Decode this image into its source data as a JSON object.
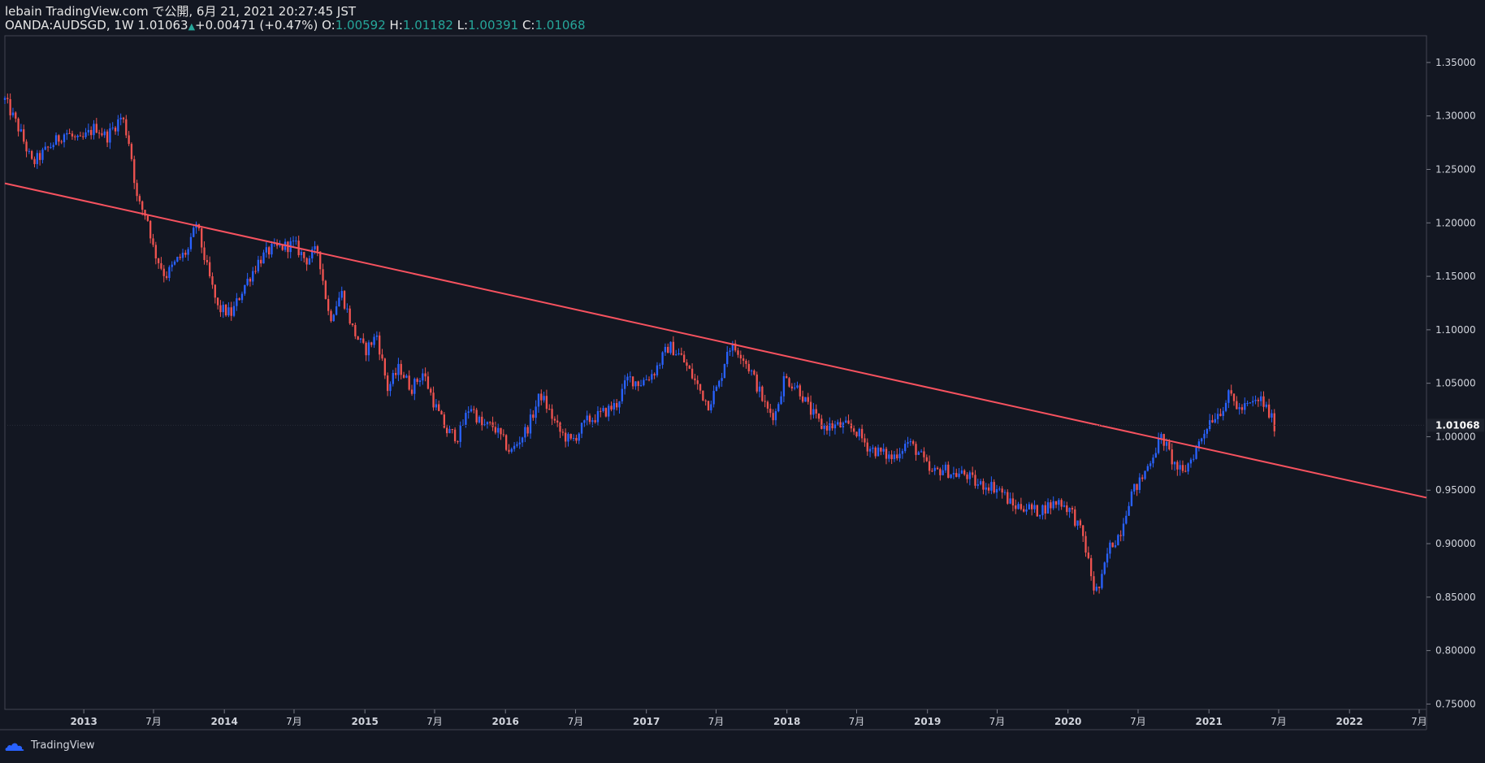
{
  "header": {
    "published": "lebain TradingView.com で公開, 6月 21, 2021 20:27:45 JST",
    "symbol": "OANDA:AUDSGD, 1W",
    "last": "1.01063",
    "change": "+0.00471 (+0.47%)",
    "o_label": "O:",
    "o_value": "1.00592",
    "h_label": "H:",
    "h_value": "1.01182",
    "l_label": "L:",
    "l_value": "1.00391",
    "c_label": "C:",
    "c_value": "1.01068"
  },
  "footer": {
    "brand": "TradingView"
  },
  "colors": {
    "up": "#2962ff",
    "down": "#ef5350",
    "bg": "#131722",
    "trend": "#f7525f",
    "text": "#d1d4dc",
    "accent": "#26a69a"
  },
  "chart_data": {
    "type": "candlestick",
    "symbol": "OANDA:AUDSGD",
    "interval": "1W",
    "y_axis": {
      "range": [
        0.745,
        1.375
      ],
      "ticks": [
        "1.35000",
        "1.30000",
        "1.25000",
        "1.20000",
        "1.15000",
        "1.10000",
        "1.05000",
        "1.00000",
        "0.95000",
        "0.90000",
        "0.85000",
        "0.80000",
        "0.75000"
      ],
      "last_price_label": "1.01068"
    },
    "x_axis": {
      "range": [
        "2012-06-10",
        "2022-07-20"
      ],
      "ticks": [
        {
          "date": "2013-01-01",
          "label": "2013",
          "bold": true
        },
        {
          "date": "2013-07-01",
          "label": "7月",
          "bold": false
        },
        {
          "date": "2014-01-01",
          "label": "2014",
          "bold": true
        },
        {
          "date": "2014-07-01",
          "label": "7月",
          "bold": false
        },
        {
          "date": "2015-01-01",
          "label": "2015",
          "bold": true
        },
        {
          "date": "2015-07-01",
          "label": "7月",
          "bold": false
        },
        {
          "date": "2016-01-01",
          "label": "2016",
          "bold": true
        },
        {
          "date": "2016-07-01",
          "label": "7月",
          "bold": false
        },
        {
          "date": "2017-01-01",
          "label": "2017",
          "bold": true
        },
        {
          "date": "2017-07-01",
          "label": "7月",
          "bold": false
        },
        {
          "date": "2018-01-01",
          "label": "2018",
          "bold": true
        },
        {
          "date": "2018-07-01",
          "label": "7月",
          "bold": false
        },
        {
          "date": "2019-01-01",
          "label": "2019",
          "bold": true
        },
        {
          "date": "2019-07-01",
          "label": "7月",
          "bold": false
        },
        {
          "date": "2020-01-01",
          "label": "2020",
          "bold": true
        },
        {
          "date": "2020-07-01",
          "label": "7月",
          "bold": false
        },
        {
          "date": "2021-01-01",
          "label": "2021",
          "bold": true
        },
        {
          "date": "2021-07-01",
          "label": "7月",
          "bold": false
        },
        {
          "date": "2022-01-01",
          "label": "2022",
          "bold": true
        },
        {
          "date": "2022-07-01",
          "label": "7月",
          "bold": false
        }
      ]
    },
    "price_path": [
      [
        "2012-06-10",
        1.315
      ],
      [
        "2012-07-20",
        1.285
      ],
      [
        "2012-08-20",
        1.255
      ],
      [
        "2012-10-01",
        1.27
      ],
      [
        "2012-11-15",
        1.285
      ],
      [
        "2012-12-20",
        1.275
      ],
      [
        "2013-02-01",
        1.29
      ],
      [
        "2013-03-01",
        1.28
      ],
      [
        "2013-04-10",
        1.3
      ],
      [
        "2013-05-01",
        1.272
      ],
      [
        "2013-05-20",
        1.22
      ],
      [
        "2013-06-15",
        1.205
      ],
      [
        "2013-07-01",
        1.175
      ],
      [
        "2013-08-01",
        1.15
      ],
      [
        "2013-09-01",
        1.165
      ],
      [
        "2013-10-01",
        1.175
      ],
      [
        "2013-10-20",
        1.2
      ],
      [
        "2013-11-15",
        1.16
      ],
      [
        "2013-12-15",
        1.12
      ],
      [
        "2014-01-20",
        1.115
      ],
      [
        "2014-02-20",
        1.14
      ],
      [
        "2014-04-01",
        1.165
      ],
      [
        "2014-05-01",
        1.175
      ],
      [
        "2014-07-01",
        1.18
      ],
      [
        "2014-08-01",
        1.165
      ],
      [
        "2014-09-01",
        1.175
      ],
      [
        "2014-10-01",
        1.11
      ],
      [
        "2014-11-01",
        1.135
      ],
      [
        "2014-12-01",
        1.1
      ],
      [
        "2015-01-01",
        1.08
      ],
      [
        "2015-02-01",
        1.095
      ],
      [
        "2015-03-01",
        1.045
      ],
      [
        "2015-04-01",
        1.065
      ],
      [
        "2015-05-01",
        1.045
      ],
      [
        "2015-06-01",
        1.06
      ],
      [
        "2015-07-01",
        1.03
      ],
      [
        "2015-08-01",
        1.005
      ],
      [
        "2015-09-01",
        1.0
      ],
      [
        "2015-10-01",
        1.03
      ],
      [
        "2015-11-01",
        1.01
      ],
      [
        "2015-12-01",
        1.01
      ],
      [
        "2016-01-15",
        0.985
      ],
      [
        "2016-03-01",
        1.01
      ],
      [
        "2016-04-01",
        1.04
      ],
      [
        "2016-05-20",
        1.005
      ],
      [
        "2016-06-20",
        0.995
      ],
      [
        "2016-08-01",
        1.015
      ],
      [
        "2016-09-01",
        1.02
      ],
      [
        "2016-10-15",
        1.03
      ],
      [
        "2016-11-15",
        1.055
      ],
      [
        "2016-12-15",
        1.05
      ],
      [
        "2017-01-20",
        1.06
      ],
      [
        "2017-03-01",
        1.085
      ],
      [
        "2017-04-01",
        1.075
      ],
      [
        "2017-05-10",
        1.05
      ],
      [
        "2017-06-10",
        1.03
      ],
      [
        "2017-07-10",
        1.05
      ],
      [
        "2017-08-01",
        1.085
      ],
      [
        "2017-09-01",
        1.08
      ],
      [
        "2017-10-01",
        1.06
      ],
      [
        "2017-11-10",
        1.025
      ],
      [
        "2017-12-01",
        1.02
      ],
      [
        "2017-12-25",
        1.055
      ],
      [
        "2018-02-01",
        1.045
      ],
      [
        "2018-03-01",
        1.025
      ],
      [
        "2018-04-01",
        1.01
      ],
      [
        "2018-05-01",
        1.01
      ],
      [
        "2018-06-01",
        1.01
      ],
      [
        "2018-07-01",
        1.005
      ],
      [
        "2018-08-01",
        0.99
      ],
      [
        "2018-09-01",
        0.985
      ],
      [
        "2018-10-01",
        0.98
      ],
      [
        "2018-11-10",
        0.995
      ],
      [
        "2018-12-10",
        0.985
      ],
      [
        "2019-01-10",
        0.965
      ],
      [
        "2019-02-10",
        0.97
      ],
      [
        "2019-03-10",
        0.965
      ],
      [
        "2019-04-10",
        0.965
      ],
      [
        "2019-05-10",
        0.955
      ],
      [
        "2019-06-10",
        0.955
      ],
      [
        "2019-07-10",
        0.95
      ],
      [
        "2019-08-10",
        0.935
      ],
      [
        "2019-09-10",
        0.935
      ],
      [
        "2019-10-10",
        0.93
      ],
      [
        "2019-11-10",
        0.935
      ],
      [
        "2019-12-10",
        0.94
      ],
      [
        "2020-01-10",
        0.93
      ],
      [
        "2020-02-10",
        0.905
      ],
      [
        "2020-03-10",
        0.855
      ],
      [
        "2020-03-25",
        0.86
      ],
      [
        "2020-04-15",
        0.895
      ],
      [
        "2020-05-15",
        0.91
      ],
      [
        "2020-06-10",
        0.945
      ],
      [
        "2020-07-10",
        0.96
      ],
      [
        "2020-08-10",
        0.985
      ],
      [
        "2020-09-01",
        1.0
      ],
      [
        "2020-10-01",
        0.975
      ],
      [
        "2020-10-25",
        0.965
      ],
      [
        "2020-12-01",
        0.99
      ],
      [
        "2021-01-01",
        1.015
      ],
      [
        "2021-02-01",
        1.025
      ],
      [
        "2021-02-25",
        1.04
      ],
      [
        "2021-03-20",
        1.025
      ],
      [
        "2021-04-20",
        1.03
      ],
      [
        "2021-05-15",
        1.035
      ],
      [
        "2021-06-01",
        1.025
      ],
      [
        "2021-06-21",
        1.01
      ]
    ],
    "trendline": [
      [
        "2012-06-10",
        1.237
      ],
      [
        "2022-07-20",
        0.943
      ]
    ],
    "annotation": {
      "type": "descending trendline",
      "color": "#f7525f"
    }
  }
}
